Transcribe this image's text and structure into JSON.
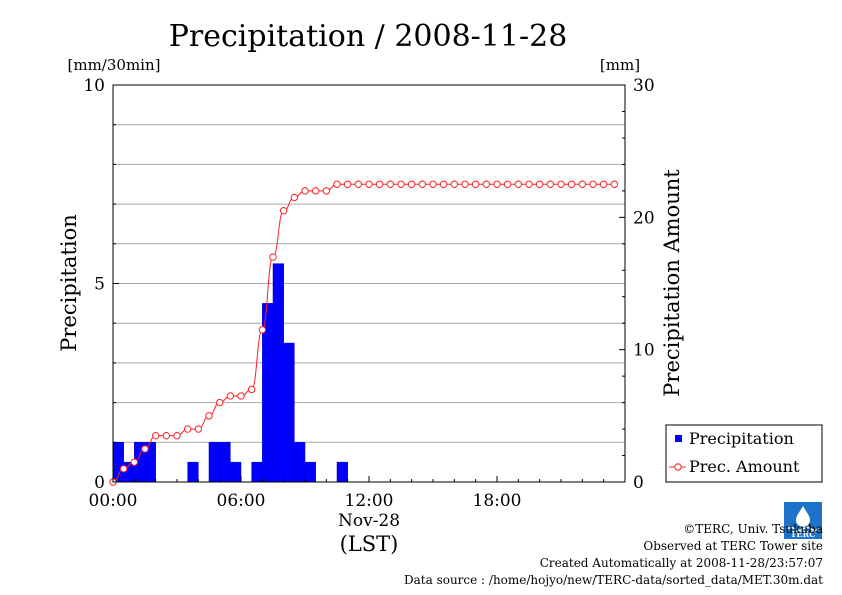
{
  "chart_data": {
    "type": "bar",
    "title": "Precipitation / 2008-11-28",
    "left_unit": "[mm/30min]",
    "right_unit": "[mm]",
    "ylabel": "Precipitation",
    "y2label": "Precipitation Amount",
    "ylim": [
      0,
      10
    ],
    "y2lim": [
      0,
      30
    ],
    "yticks": [
      "0",
      "5",
      "10"
    ],
    "y2ticks": [
      "0",
      "10",
      "20",
      "30"
    ],
    "xticks": [
      "00:00",
      "06:00",
      "12:00",
      "18:00"
    ],
    "xdate": "Nov-28",
    "xunit": "(LST)",
    "legend_position": "bottom-right",
    "series": [
      {
        "name": "Precipitation",
        "kind": "bar",
        "color": "#0000ff",
        "time": [
          "00:00",
          "00:30",
          "01:00",
          "01:30",
          "02:00",
          "02:30",
          "03:00",
          "03:30",
          "04:00",
          "04:30",
          "05:00",
          "05:30",
          "06:00",
          "06:30",
          "07:00",
          "07:30",
          "08:00",
          "08:30",
          "09:00",
          "09:30",
          "10:00",
          "10:30",
          "11:00",
          "11:30",
          "12:00",
          "12:30",
          "13:00",
          "13:30",
          "14:00",
          "14:30",
          "15:00",
          "15:30",
          "16:00",
          "16:30",
          "17:00",
          "17:30",
          "18:00",
          "18:30",
          "19:00",
          "19:30",
          "20:00",
          "20:30",
          "21:00",
          "21:30",
          "22:00",
          "22:30",
          "23:00",
          "23:30"
        ],
        "values": [
          1.0,
          0.5,
          1.0,
          1.0,
          0,
          0,
          0,
          0.5,
          0,
          1.0,
          1.0,
          0.5,
          0,
          0.5,
          4.5,
          5.5,
          3.5,
          1.0,
          0.5,
          0,
          0,
          0.5,
          0,
          0,
          0,
          0,
          0,
          0,
          0,
          0,
          0,
          0,
          0,
          0,
          0,
          0,
          0,
          0,
          0,
          0,
          0,
          0,
          0,
          0,
          0,
          0,
          0,
          0
        ]
      },
      {
        "name": "Prec. Amount",
        "kind": "line",
        "color": "#ff2222",
        "time": [
          "00:00",
          "00:30",
          "01:00",
          "01:30",
          "02:00",
          "02:30",
          "03:00",
          "03:30",
          "04:00",
          "04:30",
          "05:00",
          "05:30",
          "06:00",
          "06:30",
          "07:00",
          "07:30",
          "08:00",
          "08:30",
          "09:00",
          "09:30",
          "10:00",
          "10:30",
          "11:00",
          "11:30",
          "12:00",
          "12:30",
          "13:00",
          "13:30",
          "14:00",
          "14:30",
          "15:00",
          "15:30",
          "16:00",
          "16:30",
          "17:00",
          "17:30",
          "18:00",
          "18:30",
          "19:00",
          "19:30",
          "20:00",
          "20:30",
          "21:00",
          "21:30",
          "22:00",
          "22:30",
          "23:00",
          "23:30"
        ],
        "values": [
          0,
          1.0,
          1.5,
          2.5,
          3.5,
          3.5,
          3.5,
          4.0,
          4.0,
          5.0,
          6.0,
          6.5,
          6.5,
          7.0,
          11.5,
          17.0,
          20.5,
          21.5,
          22.0,
          22.0,
          22.0,
          22.5,
          22.5,
          22.5,
          22.5,
          22.5,
          22.5,
          22.5,
          22.5,
          22.5,
          22.5,
          22.5,
          22.5,
          22.5,
          22.5,
          22.5,
          22.5,
          22.5,
          22.5,
          22.5,
          22.5,
          22.5,
          22.5,
          22.5,
          22.5,
          22.5,
          22.5,
          22.5
        ]
      }
    ]
  },
  "footer": {
    "copyright": "©TERC, Univ. Tsukuba",
    "site": "Observed at TERC Tower site",
    "created": "Created Automatically at 2008-11-28/23:57:07",
    "source": "Data source : /home/hojyo/new/TERC-data/sorted_data/MET.30m.dat"
  },
  "logo": {
    "text": "TERC",
    "color": "#1e73c8"
  }
}
